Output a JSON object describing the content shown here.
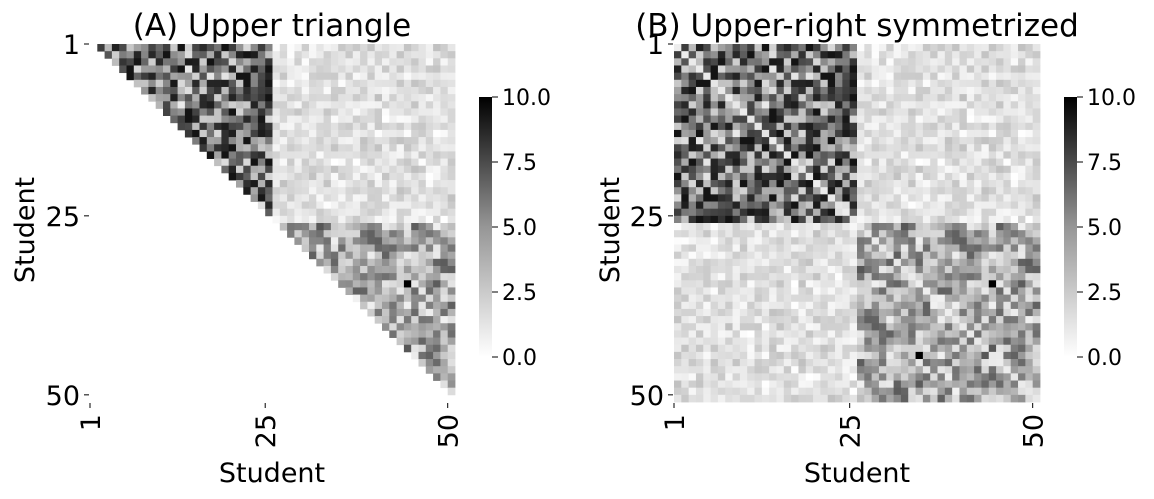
{
  "chart_data": [
    {
      "type": "heatmap",
      "title": "(A) Upper triangle",
      "xlabel": "Student",
      "ylabel": "Student",
      "n": 50,
      "x_ticks": [
        1,
        25,
        50
      ],
      "y_ticks": [
        1,
        25,
        50
      ],
      "mask": "lower-triangle (only i < j shown)",
      "colorbar": {
        "min": 0.0,
        "max": 10.0,
        "ticks": [
          "0.0",
          "2.5",
          "5.0",
          "7.5",
          "10.0"
        ],
        "colormap": "Greys"
      },
      "blocks": [
        {
          "rows": [
            1,
            25
          ],
          "cols": [
            1,
            25
          ],
          "approx_mean": 5.5
        },
        {
          "rows": [
            1,
            25
          ],
          "cols": [
            26,
            50
          ],
          "approx_mean": 1.2
        },
        {
          "rows": [
            26,
            50
          ],
          "cols": [
            26,
            50
          ],
          "approx_mean": 3.5
        }
      ],
      "highlight_cells": [
        {
          "row": 34,
          "col": 44,
          "value": 10.0
        }
      ]
    },
    {
      "type": "heatmap",
      "title": "(B) Upper-right symmetrized",
      "xlabel": "Student",
      "ylabel": "Student",
      "n": 50,
      "x_ticks": [
        1,
        25,
        50
      ],
      "y_ticks": [
        1,
        25,
        50
      ],
      "mask": "none (symmetric)",
      "colorbar": {
        "min": 0.0,
        "max": 10.0,
        "ticks": [
          "0.0",
          "2.5",
          "5.0",
          "7.5",
          "10.0"
        ],
        "colormap": "Greys"
      },
      "blocks": [
        {
          "rows": [
            1,
            25
          ],
          "cols": [
            1,
            25
          ],
          "approx_mean": 5.5
        },
        {
          "rows": [
            1,
            25
          ],
          "cols": [
            26,
            50
          ],
          "approx_mean": 1.2
        },
        {
          "rows": [
            26,
            50
          ],
          "cols": [
            1,
            25
          ],
          "approx_mean": 1.2
        },
        {
          "rows": [
            26,
            50
          ],
          "cols": [
            26,
            50
          ],
          "approx_mean": 3.5
        }
      ],
      "highlight_cells": [
        {
          "row": 34,
          "col": 44,
          "value": 10.0
        },
        {
          "row": 44,
          "col": 34,
          "value": 10.0
        }
      ]
    }
  ]
}
